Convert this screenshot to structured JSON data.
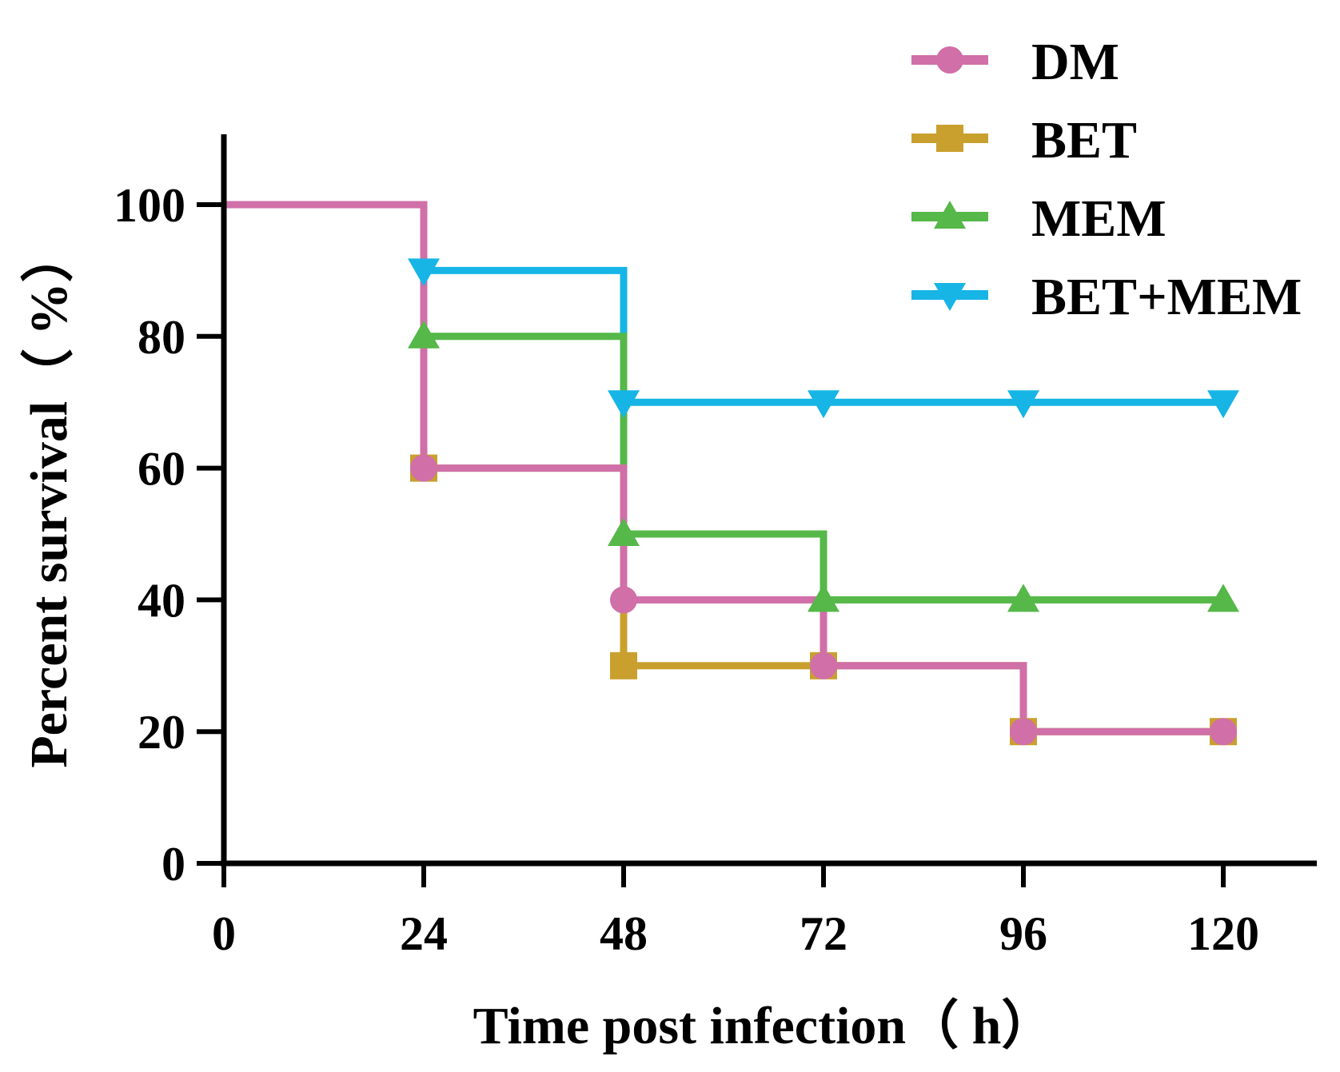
{
  "chart_data": {
    "type": "line",
    "step": true,
    "title": "",
    "xlabel": "Time post infection（ h）",
    "ylabel": "Percent survival（ %）",
    "xlim": [
      0,
      130
    ],
    "ylim": [
      0,
      110
    ],
    "xticks": [
      0,
      24,
      48,
      72,
      96,
      120
    ],
    "xtick_labels": [
      "0",
      "24",
      "48",
      "72",
      "96",
      "120"
    ],
    "yticks": [
      0,
      20,
      40,
      60,
      80,
      100
    ],
    "ytick_labels": [
      "0",
      "20",
      "40",
      "60",
      "80",
      "100"
    ],
    "legend_position": "top-right",
    "series": [
      {
        "name": "DM",
        "color": "#d06fa8",
        "marker": "circle",
        "x": [
          0,
          24,
          48,
          72,
          96,
          120
        ],
        "values": [
          100,
          60,
          40,
          30,
          20,
          20
        ]
      },
      {
        "name": "BET",
        "color": "#c9a02e",
        "marker": "square",
        "x": [
          0,
          24,
          48,
          72,
          96,
          120
        ],
        "values": [
          100,
          60,
          30,
          30,
          20,
          20
        ]
      },
      {
        "name": "MEM",
        "color": "#55b848",
        "marker": "triangle-up",
        "x": [
          0,
          24,
          48,
          72,
          96,
          120
        ],
        "values": [
          100,
          80,
          50,
          40,
          40,
          40
        ]
      },
      {
        "name": "BET+MEM",
        "color": "#16b5e6",
        "marker": "triangle-down",
        "x": [
          0,
          24,
          48,
          72,
          96,
          120
        ],
        "values": [
          100,
          90,
          70,
          70,
          70,
          70
        ]
      }
    ]
  }
}
